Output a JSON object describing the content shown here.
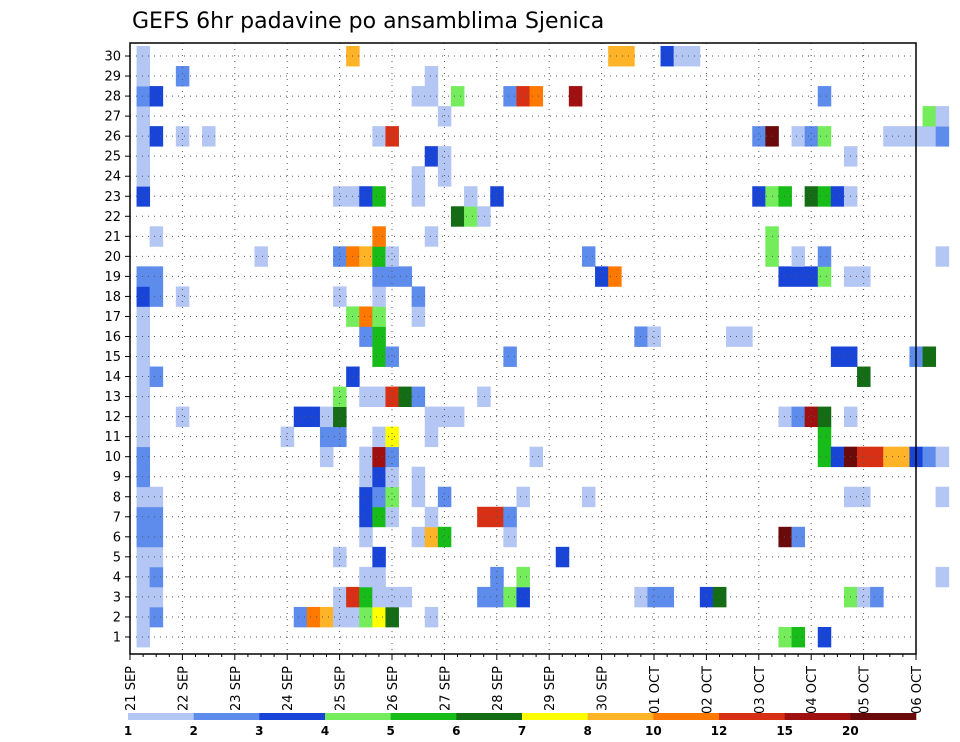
{
  "chart_data": {
    "type": "heatmap",
    "title": "GEFS 6hr padavine po ansamblima Sjenica",
    "xlabel": "",
    "ylabel": "",
    "x_tick_labels": [
      "21 SEP",
      "22 SEP",
      "23 SEP",
      "24 SEP",
      "25 SEP",
      "26 SEP",
      "27 SEP",
      "28 SEP",
      "29 SEP",
      "30 SEP",
      "01 OCT",
      "02 OCT",
      "03 OCT",
      "04 OCT",
      "05 OCT",
      "06 OCT"
    ],
    "y_tick_labels": [
      "1",
      "2",
      "3",
      "4",
      "5",
      "6",
      "7",
      "8",
      "9",
      "10",
      "11",
      "12",
      "13",
      "14",
      "15",
      "16",
      "17",
      "18",
      "19",
      "20",
      "21",
      "22",
      "23",
      "24",
      "25",
      "26",
      "27",
      "28",
      "29",
      "30"
    ],
    "time_steps_per_day": 4,
    "x_start_offset": 0.5,
    "grid": true,
    "legend": {
      "position": "bottom",
      "labels": [
        "1",
        "2",
        "3",
        "4",
        "5",
        "6",
        "7",
        "8",
        "10",
        "12",
        "15",
        "20"
      ],
      "colors": [
        "#b4c7f4",
        "#5e8cec",
        "#1845d8",
        "#74ec5c",
        "#18bc18",
        "#146c14",
        "#ffff00",
        "#ffb428",
        "#ff7800",
        "#d83014",
        "#a01010",
        "#6a0a0a"
      ]
    },
    "cells": [
      [
        0,
        0,
        1
      ],
      [
        0,
        1,
        1
      ],
      [
        0,
        2,
        1
      ],
      [
        0,
        3,
        1
      ],
      [
        0,
        4,
        1
      ],
      [
        0,
        5,
        2
      ],
      [
        0,
        6,
        2
      ],
      [
        0,
        7,
        1
      ],
      [
        0,
        8,
        2
      ],
      [
        0,
        9,
        2
      ],
      [
        0,
        10,
        1
      ],
      [
        0,
        11,
        1
      ],
      [
        0,
        12,
        1
      ],
      [
        0,
        13,
        1
      ],
      [
        0,
        14,
        1
      ],
      [
        0,
        15,
        1
      ],
      [
        0,
        16,
        1
      ],
      [
        0,
        17,
        3
      ],
      [
        0,
        18,
        2
      ],
      [
        0,
        22,
        3
      ],
      [
        0,
        23,
        1
      ],
      [
        0,
        24,
        1
      ],
      [
        0,
        25,
        1
      ],
      [
        0,
        26,
        1
      ],
      [
        0,
        27,
        2
      ],
      [
        0,
        28,
        1
      ],
      [
        0,
        29,
        1
      ],
      [
        1,
        1,
        2
      ],
      [
        1,
        2,
        1
      ],
      [
        1,
        3,
        2
      ],
      [
        1,
        4,
        1
      ],
      [
        1,
        5,
        2
      ],
      [
        1,
        6,
        2
      ],
      [
        1,
        7,
        1
      ],
      [
        1,
        13,
        2
      ],
      [
        1,
        17,
        2
      ],
      [
        1,
        18,
        2
      ],
      [
        1,
        20,
        1
      ],
      [
        1,
        25,
        3
      ],
      [
        1,
        27,
        3
      ],
      [
        3,
        11,
        1
      ],
      [
        3,
        17,
        1
      ],
      [
        3,
        25,
        1
      ],
      [
        3,
        28,
        2
      ],
      [
        5,
        25,
        1
      ],
      [
        9,
        19,
        1
      ],
      [
        11,
        10,
        1
      ],
      [
        12,
        1,
        2
      ],
      [
        12,
        11,
        3
      ],
      [
        13,
        1,
        9
      ],
      [
        13,
        11,
        3
      ],
      [
        14,
        1,
        8
      ],
      [
        14,
        9,
        1
      ],
      [
        14,
        10,
        2
      ],
      [
        14,
        11,
        1
      ],
      [
        15,
        1,
        1
      ],
      [
        15,
        2,
        1
      ],
      [
        15,
        4,
        1
      ],
      [
        15,
        10,
        2
      ],
      [
        15,
        11,
        6
      ],
      [
        15,
        12,
        4
      ],
      [
        15,
        17,
        1
      ],
      [
        15,
        19,
        2
      ],
      [
        15,
        22,
        1
      ],
      [
        16,
        1,
        1
      ],
      [
        16,
        2,
        10
      ],
      [
        16,
        13,
        3
      ],
      [
        16,
        16,
        4
      ],
      [
        16,
        19,
        9
      ],
      [
        16,
        22,
        1
      ],
      [
        16,
        29,
        8
      ],
      [
        17,
        1,
        4
      ],
      [
        17,
        2,
        5
      ],
      [
        17,
        3,
        1
      ],
      [
        17,
        5,
        1
      ],
      [
        17,
        6,
        3
      ],
      [
        17,
        7,
        3
      ],
      [
        17,
        8,
        1
      ],
      [
        17,
        9,
        1
      ],
      [
        17,
        12,
        1
      ],
      [
        17,
        15,
        2
      ],
      [
        17,
        16,
        9
      ],
      [
        17,
        19,
        8
      ],
      [
        17,
        22,
        3
      ],
      [
        18,
        1,
        7
      ],
      [
        18,
        2,
        1
      ],
      [
        18,
        3,
        1
      ],
      [
        18,
        4,
        3
      ],
      [
        18,
        6,
        5
      ],
      [
        18,
        7,
        2
      ],
      [
        18,
        8,
        3
      ],
      [
        18,
        9,
        11
      ],
      [
        18,
        10,
        1
      ],
      [
        18,
        12,
        1
      ],
      [
        18,
        14,
        5
      ],
      [
        18,
        15,
        5
      ],
      [
        18,
        16,
        4
      ],
      [
        18,
        17,
        1
      ],
      [
        18,
        18,
        2
      ],
      [
        18,
        19,
        5
      ],
      [
        18,
        20,
        9
      ],
      [
        18,
        22,
        5
      ],
      [
        18,
        25,
        1
      ],
      [
        19,
        1,
        6
      ],
      [
        19,
        2,
        1
      ],
      [
        19,
        6,
        1
      ],
      [
        19,
        7,
        4
      ],
      [
        19,
        8,
        1
      ],
      [
        19,
        9,
        2
      ],
      [
        19,
        10,
        7
      ],
      [
        19,
        12,
        10
      ],
      [
        19,
        14,
        2
      ],
      [
        19,
        18,
        2
      ],
      [
        19,
        19,
        1
      ],
      [
        19,
        25,
        10
      ],
      [
        20,
        2,
        1
      ],
      [
        20,
        12,
        6
      ],
      [
        20,
        18,
        2
      ],
      [
        21,
        5,
        1
      ],
      [
        21,
        7,
        1
      ],
      [
        21,
        8,
        1
      ],
      [
        21,
        12,
        2
      ],
      [
        21,
        16,
        1
      ],
      [
        21,
        17,
        2
      ],
      [
        21,
        22,
        1
      ],
      [
        21,
        23,
        1
      ],
      [
        21,
        27,
        1
      ],
      [
        22,
        1,
        1
      ],
      [
        22,
        5,
        8
      ],
      [
        22,
        6,
        1
      ],
      [
        22,
        10,
        1
      ],
      [
        22,
        11,
        1
      ],
      [
        22,
        20,
        1
      ],
      [
        22,
        24,
        3
      ],
      [
        22,
        27,
        1
      ],
      [
        22,
        28,
        1
      ],
      [
        23,
        5,
        5
      ],
      [
        23,
        7,
        2
      ],
      [
        23,
        11,
        1
      ],
      [
        23,
        23,
        1
      ],
      [
        23,
        24,
        1
      ],
      [
        23,
        26,
        1
      ],
      [
        24,
        11,
        1
      ],
      [
        24,
        21,
        6
      ],
      [
        24,
        27,
        4
      ],
      [
        25,
        21,
        4
      ],
      [
        25,
        22,
        1
      ],
      [
        26,
        2,
        2
      ],
      [
        26,
        6,
        10
      ],
      [
        26,
        12,
        1
      ],
      [
        26,
        21,
        1
      ],
      [
        27,
        2,
        2
      ],
      [
        27,
        3,
        2
      ],
      [
        27,
        6,
        10
      ],
      [
        27,
        22,
        3
      ],
      [
        28,
        2,
        4
      ],
      [
        28,
        5,
        1
      ],
      [
        28,
        6,
        2
      ],
      [
        28,
        14,
        2
      ],
      [
        28,
        27,
        2
      ],
      [
        29,
        2,
        3
      ],
      [
        29,
        3,
        4
      ],
      [
        29,
        7,
        1
      ],
      [
        29,
        27,
        10
      ],
      [
        30,
        9,
        1
      ],
      [
        30,
        27,
        9
      ],
      [
        32,
        4,
        3
      ],
      [
        33,
        27,
        11
      ],
      [
        34,
        7,
        1
      ],
      [
        34,
        19,
        2
      ],
      [
        35,
        18,
        3
      ],
      [
        36,
        18,
        9
      ],
      [
        36,
        29,
        8
      ],
      [
        37,
        29,
        8
      ],
      [
        38,
        2,
        1
      ],
      [
        38,
        15,
        2
      ],
      [
        39,
        2,
        2
      ],
      [
        39,
        15,
        1
      ],
      [
        40,
        2,
        2
      ],
      [
        40,
        29,
        3
      ],
      [
        41,
        29,
        1
      ],
      [
        42,
        29,
        1
      ],
      [
        43,
        2,
        3
      ],
      [
        44,
        2,
        6
      ],
      [
        45,
        15,
        1
      ],
      [
        46,
        15,
        1
      ],
      [
        47,
        25,
        2
      ],
      [
        47,
        22,
        3
      ],
      [
        48,
        19,
        4
      ],
      [
        48,
        20,
        4
      ],
      [
        48,
        22,
        4
      ],
      [
        48,
        25,
        12
      ],
      [
        49,
        0,
        4
      ],
      [
        49,
        5,
        12
      ],
      [
        49,
        11,
        1
      ],
      [
        49,
        18,
        3
      ],
      [
        49,
        22,
        5
      ],
      [
        50,
        0,
        5
      ],
      [
        50,
        5,
        2
      ],
      [
        50,
        11,
        2
      ],
      [
        50,
        18,
        3
      ],
      [
        50,
        19,
        1
      ],
      [
        50,
        25,
        1
      ],
      [
        51,
        11,
        11
      ],
      [
        51,
        18,
        3
      ],
      [
        51,
        22,
        6
      ],
      [
        51,
        25,
        2
      ],
      [
        52,
        0,
        3
      ],
      [
        52,
        9,
        5
      ],
      [
        52,
        10,
        5
      ],
      [
        52,
        11,
        6
      ],
      [
        52,
        18,
        4
      ],
      [
        52,
        19,
        2
      ],
      [
        52,
        22,
        5
      ],
      [
        52,
        27,
        2
      ],
      [
        52,
        25,
        4
      ],
      [
        53,
        9,
        3
      ],
      [
        53,
        14,
        3
      ],
      [
        53,
        22,
        3
      ],
      [
        54,
        2,
        4
      ],
      [
        54,
        7,
        1
      ],
      [
        54,
        9,
        12
      ],
      [
        54,
        11,
        1
      ],
      [
        54,
        14,
        3
      ],
      [
        54,
        18,
        1
      ],
      [
        54,
        22,
        1
      ],
      [
        54,
        24,
        1
      ],
      [
        55,
        2,
        1
      ],
      [
        55,
        7,
        1
      ],
      [
        55,
        9,
        10
      ],
      [
        55,
        13,
        6
      ],
      [
        55,
        18,
        1
      ],
      [
        56,
        2,
        2
      ],
      [
        56,
        9,
        10
      ],
      [
        57,
        9,
        8
      ],
      [
        57,
        25,
        1
      ],
      [
        58,
        9,
        8
      ],
      [
        58,
        25,
        1
      ],
      [
        59,
        9,
        3
      ],
      [
        59,
        14,
        2
      ],
      [
        59,
        25,
        1
      ],
      [
        60,
        9,
        2
      ],
      [
        60,
        14,
        6
      ],
      [
        60,
        25,
        1
      ],
      [
        60,
        26,
        4
      ],
      [
        61,
        3,
        1
      ],
      [
        61,
        7,
        1
      ],
      [
        61,
        9,
        1
      ],
      [
        61,
        19,
        1
      ],
      [
        61,
        25,
        2
      ],
      [
        61,
        26,
        1
      ]
    ]
  }
}
